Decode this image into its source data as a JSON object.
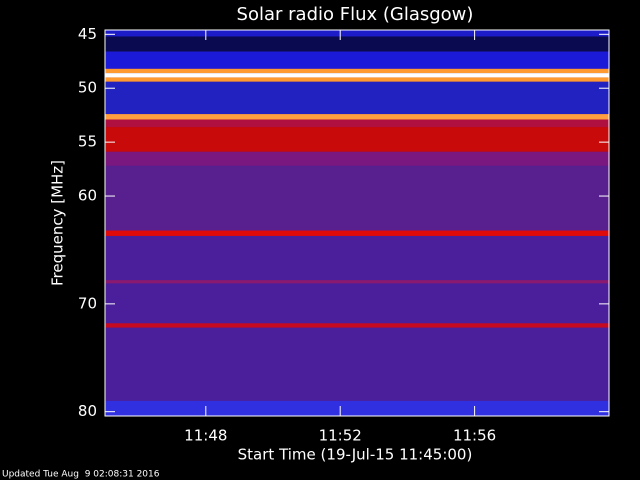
{
  "chart_data": {
    "type": "spectrogram",
    "title": "Solar radio Flux (Glasgow)",
    "xlabel": "Start Time (19-Jul-15 11:45:00)",
    "ylabel": "Frequency [MHz]",
    "footer": "Updated Tue Aug  9 02:08:31 2016",
    "xlim": [
      0,
      15
    ],
    "xticks": [
      {
        "value": 3,
        "label": "11:48"
      },
      {
        "value": 7,
        "label": "11:52"
      },
      {
        "value": 11,
        "label": "11:56"
      }
    ],
    "ylim": [
      44.6,
      80.4
    ],
    "yticks": [
      45,
      50,
      55,
      60,
      70,
      80
    ],
    "y_inverted": true,
    "background": "#4b1f9c",
    "bands": [
      {
        "from": 44.6,
        "to": 45.2,
        "color": "#1c1cc8"
      },
      {
        "from": 45.2,
        "to": 46.6,
        "color": "#0a0a50"
      },
      {
        "from": 46.6,
        "to": 48.2,
        "color": "#1a1ad8"
      },
      {
        "from": 48.2,
        "to": 48.6,
        "color": "#ff9a30"
      },
      {
        "from": 48.6,
        "to": 49.0,
        "color": "#ffffff"
      },
      {
        "from": 49.0,
        "to": 49.4,
        "color": "#ff9a30"
      },
      {
        "from": 49.4,
        "to": 52.4,
        "color": "#2222c0"
      },
      {
        "from": 52.4,
        "to": 52.9,
        "color": "#ffa040"
      },
      {
        "from": 52.9,
        "to": 53.6,
        "color": "#b01040"
      },
      {
        "from": 53.6,
        "to": 55.9,
        "color": "#c80a0a"
      },
      {
        "from": 55.9,
        "to": 57.2,
        "color": "#7a1880"
      },
      {
        "from": 57.2,
        "to": 63.2,
        "color": "#58208e"
      },
      {
        "from": 63.2,
        "to": 63.7,
        "color": "#e00a0a"
      },
      {
        "from": 67.8,
        "to": 68.1,
        "color": "#8a1a70"
      },
      {
        "from": 71.8,
        "to": 72.2,
        "color": "#c80a20"
      },
      {
        "from": 79.0,
        "to": 80.4,
        "color": "#3030e0"
      }
    ]
  }
}
